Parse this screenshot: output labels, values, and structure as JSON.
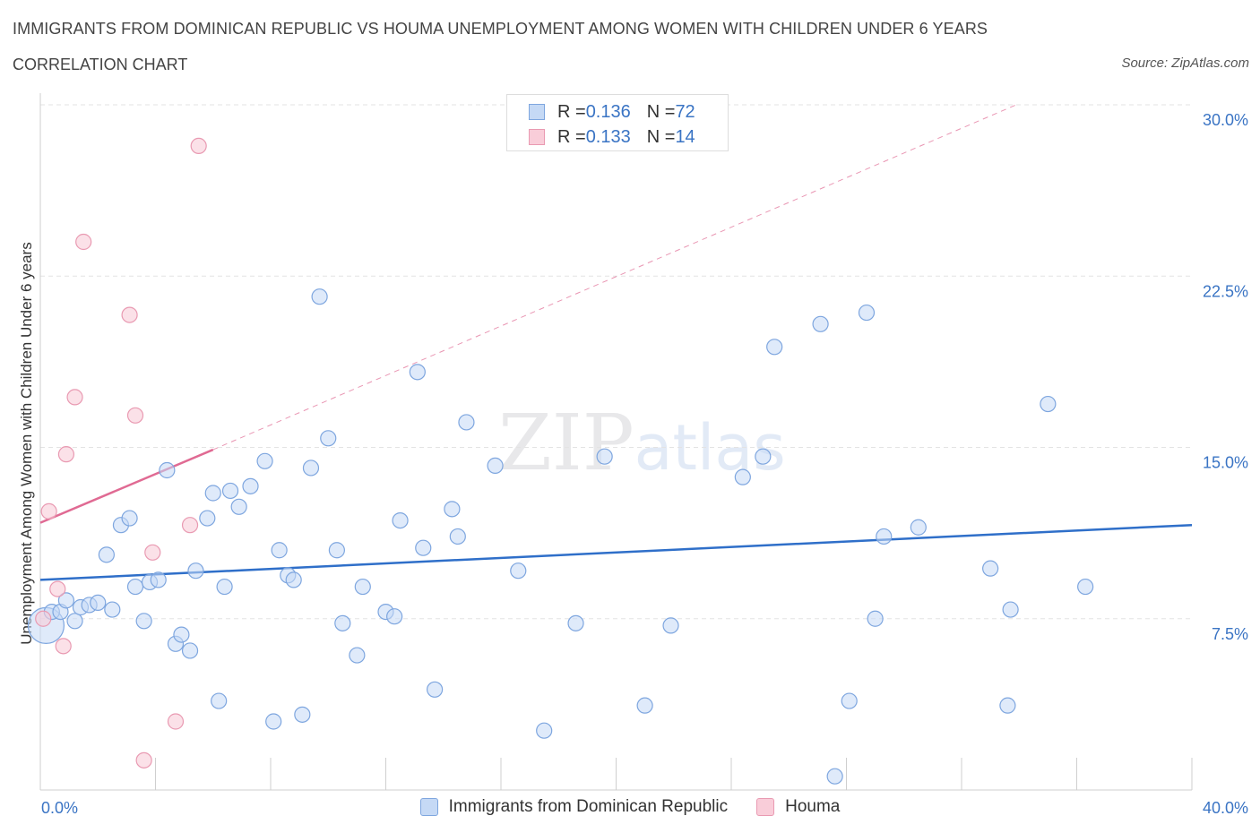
{
  "title": "IMMIGRANTS FROM DOMINICAN REPUBLIC VS HOUMA UNEMPLOYMENT AMONG WOMEN WITH CHILDREN UNDER 6 YEARS",
  "subtitle": "CORRELATION CHART",
  "source": "Source: ZipAtlas.com",
  "watermark": {
    "zip": "ZIP",
    "atlas": "atlas"
  },
  "legend_top": {
    "rows": [
      {
        "r_label": "R = ",
        "r_value": "0.136",
        "n_label": "N = ",
        "n_value": "72"
      },
      {
        "r_label": "R = ",
        "r_value": "0.133",
        "n_label": "N = ",
        "n_value": "14"
      }
    ]
  },
  "legend_bottom": [
    "Immigrants from Dominican Republic",
    "Houma"
  ],
  "colors": {
    "blue_fill": "#c5d9f5",
    "blue_stroke": "#7ea6df",
    "blue_line": "#2f6fc9",
    "pink_fill": "#f9cdd9",
    "pink_stroke": "#e99ab2",
    "pink_line": "#e06a93",
    "grid": "#e3e3e3",
    "tick_text": "#3a74c4"
  },
  "chart_data": {
    "type": "scatter",
    "title": "IMMIGRANTS FROM DOMINICAN REPUBLIC VS HOUMA UNEMPLOYMENT AMONG WOMEN WITH CHILDREN UNDER 6 YEARS",
    "xlabel": "",
    "ylabel": "Unemployment Among Women with Children Under 6 years",
    "xlim": [
      0,
      40
    ],
    "ylim": [
      0,
      30
    ],
    "x_tick_labels": [
      "0.0%",
      "40.0%"
    ],
    "y_ticks": [
      7.5,
      15.0,
      22.5,
      30.0
    ],
    "y_tick_labels": [
      "7.5%",
      "15.0%",
      "22.5%",
      "30.0%"
    ],
    "grid": true,
    "legend_position": "top-center",
    "series": [
      {
        "name": "Immigrants from Dominican Republic",
        "r": 0.136,
        "n": 72,
        "trend": {
          "x": [
            0,
            40
          ],
          "y": [
            9.2,
            11.6
          ]
        },
        "points": [
          [
            0.2,
            7.2
          ],
          [
            0.4,
            7.8
          ],
          [
            0.7,
            7.8
          ],
          [
            0.9,
            8.3
          ],
          [
            1.2,
            7.4
          ],
          [
            1.4,
            8.0
          ],
          [
            1.7,
            8.1
          ],
          [
            2.0,
            8.2
          ],
          [
            2.3,
            10.3
          ],
          [
            2.5,
            7.9
          ],
          [
            2.8,
            11.6
          ],
          [
            3.1,
            11.9
          ],
          [
            3.3,
            8.9
          ],
          [
            3.6,
            7.4
          ],
          [
            3.8,
            9.1
          ],
          [
            4.1,
            9.2
          ],
          [
            4.4,
            14.0
          ],
          [
            4.7,
            6.4
          ],
          [
            4.9,
            6.8
          ],
          [
            5.2,
            6.1
          ],
          [
            5.4,
            9.6
          ],
          [
            5.8,
            11.9
          ],
          [
            6.0,
            13.0
          ],
          [
            6.2,
            3.9
          ],
          [
            6.4,
            8.9
          ],
          [
            6.6,
            13.1
          ],
          [
            6.9,
            12.4
          ],
          [
            7.3,
            13.3
          ],
          [
            7.8,
            14.4
          ],
          [
            8.1,
            3.0
          ],
          [
            8.3,
            10.5
          ],
          [
            8.6,
            9.4
          ],
          [
            8.8,
            9.2
          ],
          [
            9.1,
            3.3
          ],
          [
            9.4,
            14.1
          ],
          [
            9.7,
            21.6
          ],
          [
            10.0,
            15.4
          ],
          [
            10.3,
            10.5
          ],
          [
            10.5,
            7.3
          ],
          [
            11.0,
            5.9
          ],
          [
            11.2,
            8.9
          ],
          [
            12.0,
            7.8
          ],
          [
            12.3,
            7.6
          ],
          [
            12.5,
            11.8
          ],
          [
            13.1,
            18.3
          ],
          [
            13.3,
            10.6
          ],
          [
            13.7,
            4.4
          ],
          [
            14.3,
            12.3
          ],
          [
            14.5,
            11.1
          ],
          [
            14.8,
            16.1
          ],
          [
            15.8,
            14.2
          ],
          [
            16.6,
            9.6
          ],
          [
            17.5,
            2.6
          ],
          [
            18.6,
            7.3
          ],
          [
            19.6,
            14.6
          ],
          [
            21.0,
            3.7
          ],
          [
            21.9,
            7.2
          ],
          [
            24.4,
            13.7
          ],
          [
            25.1,
            14.6
          ],
          [
            25.5,
            19.4
          ],
          [
            27.1,
            20.4
          ],
          [
            27.6,
            0.6
          ],
          [
            28.1,
            3.9
          ],
          [
            28.7,
            20.9
          ],
          [
            29.0,
            7.5
          ],
          [
            29.3,
            11.1
          ],
          [
            30.5,
            11.5
          ],
          [
            33.0,
            9.7
          ],
          [
            33.6,
            3.7
          ],
          [
            33.7,
            7.9
          ],
          [
            35.0,
            16.9
          ],
          [
            36.3,
            8.9
          ]
        ]
      },
      {
        "name": "Houma",
        "r": 0.133,
        "n": 14,
        "trend": {
          "x": [
            0,
            6.0
          ],
          "y": [
            11.7,
            14.9
          ]
        },
        "trend_extended": {
          "x": [
            6.0,
            33.9
          ],
          "y": [
            14.9,
            30.0
          ]
        },
        "points": [
          [
            0.1,
            7.5
          ],
          [
            0.3,
            12.2
          ],
          [
            0.6,
            8.8
          ],
          [
            0.8,
            6.3
          ],
          [
            0.9,
            14.7
          ],
          [
            1.2,
            17.2
          ],
          [
            1.5,
            24.0
          ],
          [
            3.1,
            20.8
          ],
          [
            3.3,
            16.4
          ],
          [
            3.6,
            1.3
          ],
          [
            3.9,
            10.4
          ],
          [
            4.7,
            3.0
          ],
          [
            5.2,
            11.6
          ],
          [
            5.5,
            28.2
          ]
        ]
      }
    ]
  }
}
